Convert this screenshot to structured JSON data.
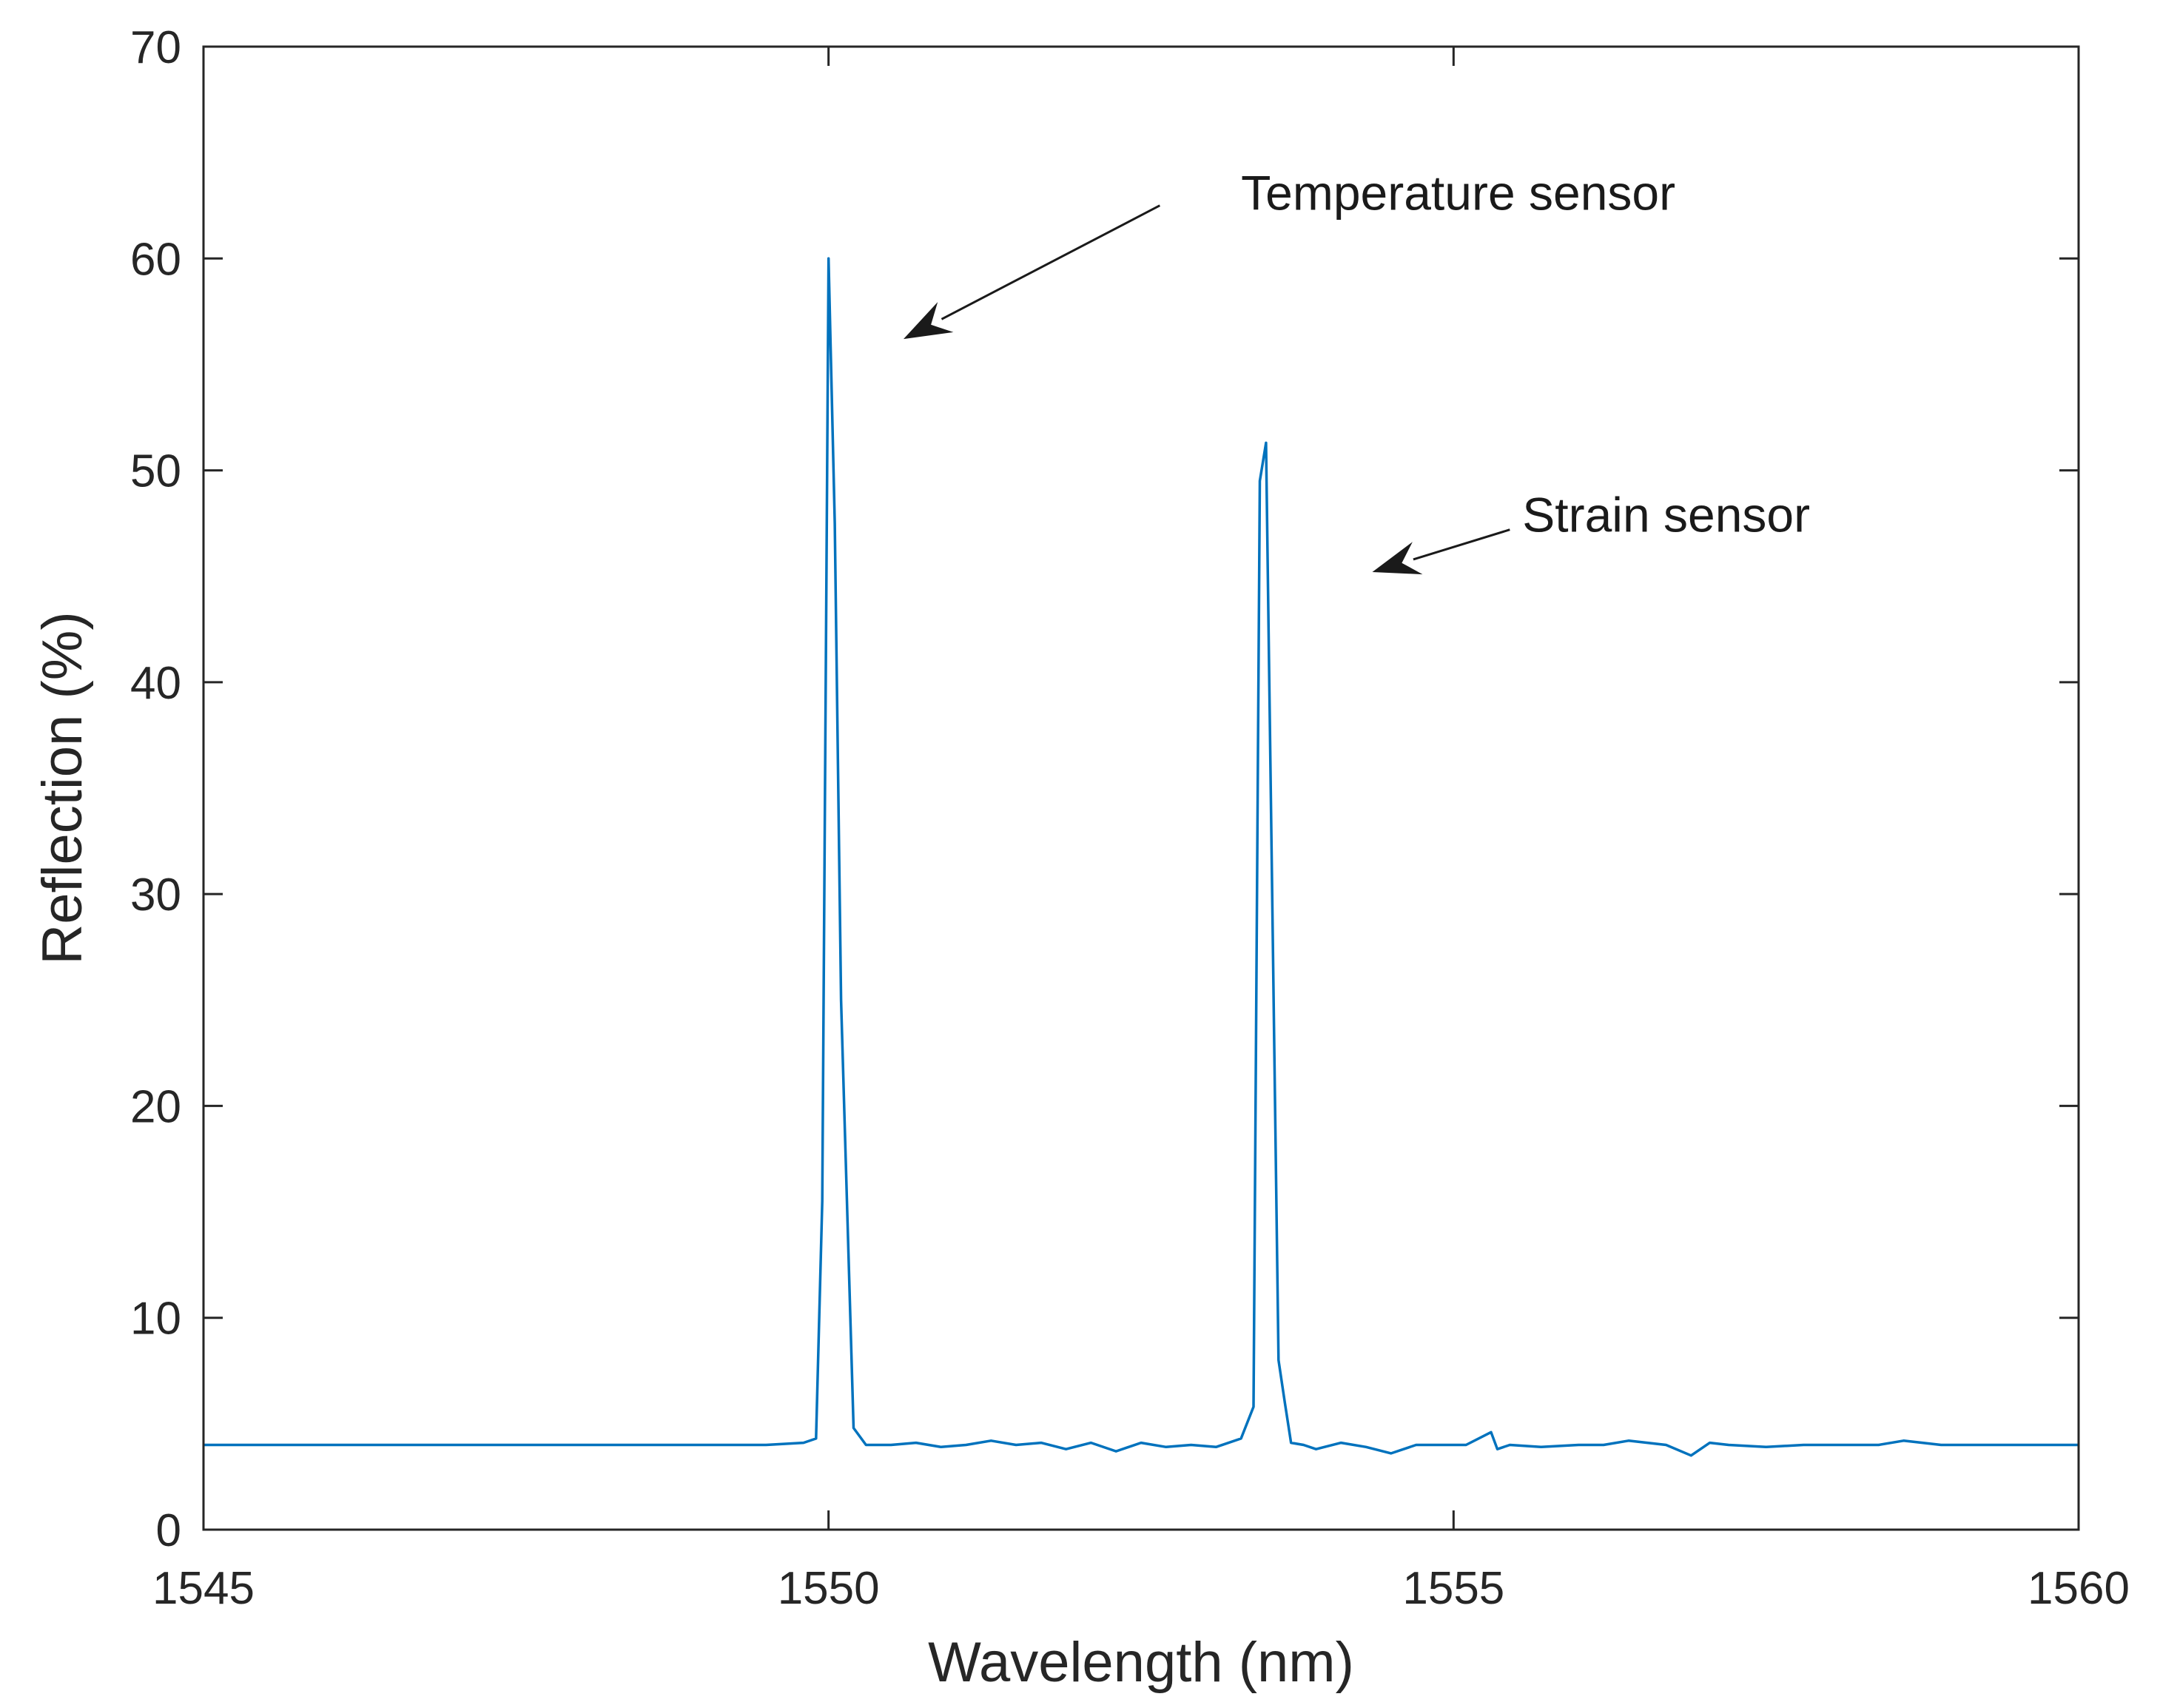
{
  "chart_data": {
    "type": "line",
    "title": "",
    "xlabel": "Wavelength (nm)",
    "ylabel": "Reflection (%)",
    "xlim": [
      1545,
      1560
    ],
    "ylim": [
      0,
      70
    ],
    "xticks": [
      1545,
      1550,
      1555,
      1560
    ],
    "yticks": [
      0,
      10,
      20,
      30,
      40,
      50,
      60,
      70
    ],
    "grid": false,
    "line_color": "#0072BD",
    "series": [
      {
        "x": [
          1545,
          1545.5,
          1546,
          1546.5,
          1547,
          1547.5,
          1548,
          1548.5,
          1549,
          1549.5,
          1549.8,
          1549.9,
          1549.95,
          1550.0,
          1550.05,
          1550.1,
          1550.2,
          1550.3,
          1550.5,
          1550.7,
          1550.9,
          1551.1,
          1551.3,
          1551.5,
          1551.7,
          1551.9,
          1552.1,
          1552.3,
          1552.5,
          1552.7,
          1552.9,
          1553.1,
          1553.3,
          1553.4,
          1553.45,
          1553.5,
          1553.6,
          1553.65,
          1553.7,
          1553.8,
          1553.9,
          1554.1,
          1554.3,
          1554.5,
          1554.7,
          1554.9,
          1555.1,
          1555.3,
          1555.35,
          1555.45,
          1555.7,
          1556.0,
          1556.2,
          1556.4,
          1556.7,
          1556.9,
          1557.05,
          1557.2,
          1557.5,
          1557.8,
          1558.1,
          1558.4,
          1558.6,
          1558.9,
          1559.2,
          1559.6,
          1560
        ],
        "y": [
          4.0,
          4.0,
          4.0,
          4.0,
          4.0,
          4.0,
          4.0,
          4.0,
          4.0,
          4.0,
          4.1,
          4.3,
          15.5,
          60,
          47.5,
          25,
          4.8,
          4.0,
          4.0,
          4.1,
          3.9,
          4.0,
          4.2,
          4.0,
          4.1,
          3.8,
          4.1,
          3.7,
          4.1,
          3.9,
          4.0,
          3.9,
          4.3,
          5.8,
          49.5,
          51.3,
          8.0,
          6.0,
          4.1,
          4.0,
          3.8,
          4.1,
          3.9,
          3.6,
          4.0,
          4.0,
          4.0,
          4.6,
          3.8,
          4.0,
          3.9,
          4.0,
          4.0,
          4.2,
          4.0,
          3.5,
          4.1,
          4.0,
          3.9,
          4.0,
          4.0,
          4.0,
          4.2,
          4.0,
          4.0,
          4.0,
          4.0
        ]
      }
    ],
    "annotations": [
      {
        "text": "Temperature sensor",
        "text_x": 1553.3,
        "text_y": 62.3,
        "arrow_to": [
          1550.6,
          56.2
        ],
        "arrow_from": [
          1552.65,
          62.5
        ]
      },
      {
        "text": "Strain sensor",
        "text_x": 1555.55,
        "text_y": 47.1,
        "arrow_to": [
          1554.35,
          45.2
        ],
        "arrow_from": [
          1555.45,
          47.2
        ]
      }
    ]
  }
}
